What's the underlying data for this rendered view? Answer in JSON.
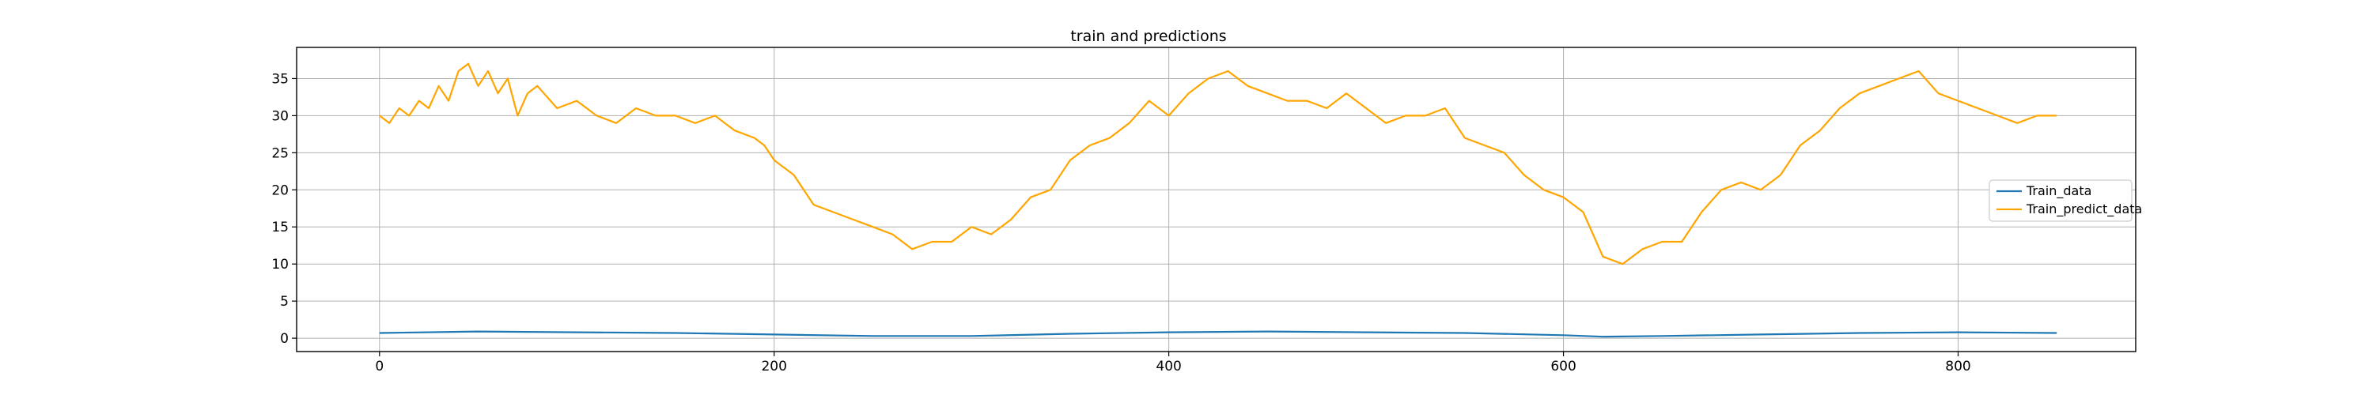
{
  "chart_data": {
    "type": "line",
    "title": "train and predictions",
    "xlabel": "",
    "ylabel": "",
    "xlim": [
      -42,
      890
    ],
    "ylim": [
      -1.8,
      39.2
    ],
    "xticks": [
      0,
      200,
      400,
      600,
      800
    ],
    "yticks": [
      0,
      5,
      10,
      15,
      20,
      25,
      30,
      35
    ],
    "grid": true,
    "legend_position": "center-right",
    "series": [
      {
        "name": "Train_data",
        "color": "#1f77b4",
        "x": [
          0,
          50,
          100,
          150,
          200,
          250,
          300,
          350,
          400,
          450,
          500,
          550,
          600,
          620,
          650,
          700,
          750,
          800,
          850
        ],
        "y": [
          0.7,
          0.9,
          0.8,
          0.7,
          0.5,
          0.3,
          0.3,
          0.6,
          0.8,
          0.9,
          0.8,
          0.7,
          0.4,
          0.2,
          0.3,
          0.5,
          0.7,
          0.8,
          0.7
        ]
      },
      {
        "name": "Train_predict_data",
        "color": "#ffa500",
        "x": [
          0,
          5,
          10,
          15,
          20,
          25,
          30,
          35,
          40,
          45,
          50,
          55,
          60,
          65,
          70,
          75,
          80,
          90,
          100,
          110,
          120,
          130,
          140,
          150,
          160,
          170,
          180,
          190,
          195,
          200,
          210,
          220,
          230,
          240,
          250,
          260,
          270,
          280,
          290,
          300,
          310,
          320,
          330,
          340,
          350,
          360,
          370,
          380,
          390,
          400,
          410,
          420,
          430,
          440,
          450,
          460,
          470,
          480,
          490,
          500,
          510,
          520,
          530,
          540,
          550,
          560,
          570,
          580,
          590,
          600,
          610,
          620,
          630,
          640,
          650,
          660,
          670,
          680,
          690,
          700,
          710,
          720,
          730,
          740,
          750,
          760,
          770,
          780,
          790,
          800,
          810,
          820,
          830,
          840,
          850
        ],
        "y": [
          30,
          29,
          31,
          30,
          32,
          31,
          34,
          32,
          36,
          37,
          34,
          36,
          33,
          35,
          30,
          33,
          34,
          31,
          32,
          30,
          29,
          31,
          30,
          30,
          29,
          30,
          28,
          27,
          26,
          24,
          22,
          18,
          17,
          16,
          15,
          14,
          12,
          13,
          13,
          15,
          14,
          16,
          19,
          20,
          24,
          26,
          27,
          29,
          32,
          30,
          33,
          35,
          36,
          34,
          33,
          32,
          32,
          31,
          33,
          31,
          29,
          30,
          30,
          31,
          27,
          26,
          25,
          22,
          20,
          19,
          17,
          11,
          10,
          12,
          13,
          13,
          17,
          20,
          21,
          20,
          22,
          26,
          28,
          31,
          33,
          34,
          35,
          36,
          33,
          32,
          31,
          30,
          29,
          30,
          30
        ]
      }
    ]
  }
}
